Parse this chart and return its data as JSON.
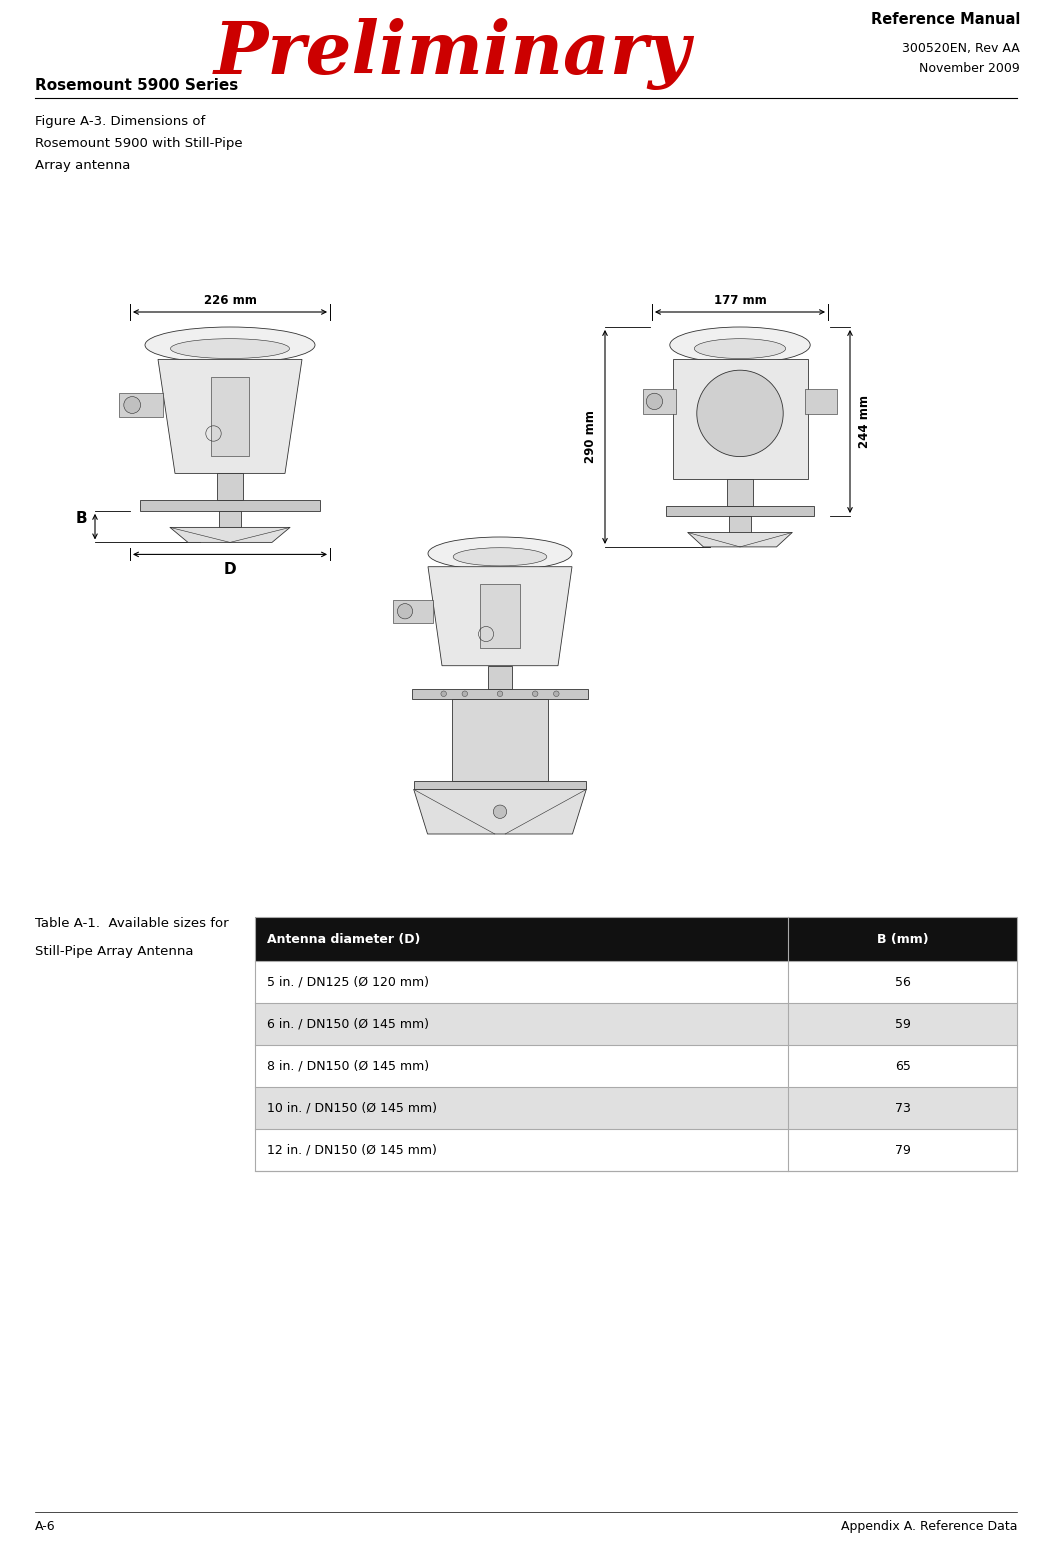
{
  "page_width": 10.52,
  "page_height": 15.67,
  "dpi": 100,
  "bg_color": "#ffffff",
  "header_preliminary_text": "Preliminary",
  "header_preliminary_color": "#cc0000",
  "header_ref_manual": "Reference Manual",
  "header_300520": "300520EN, Rev AA",
  "header_november": "November 2009",
  "header_series": "Rosemount 5900 Series",
  "figure_caption_line1": "Figure A-3. Dimensions of",
  "figure_caption_line2": "Rosemount 5900 with Still-Pipe",
  "figure_caption_line3": "Array antenna",
  "dim_226mm": "226 mm",
  "dim_177mm": "177 mm",
  "dim_290mm": "290 mm",
  "dim_244mm": "244 mm",
  "label_B": "B",
  "label_D": "D",
  "table_title_line1": "Table A-1.  Available sizes for",
  "table_title_line2": "Still-Pipe Array Antenna",
  "table_col1_header": "Antenna diameter (D)",
  "table_col2_header": "B (mm)",
  "table_rows": [
    [
      "5 in. / DN125 (Ø 120 mm)",
      "56"
    ],
    [
      "6 in. / DN150 (Ø 145 mm)",
      "59"
    ],
    [
      "8 in. / DN150 (Ø 145 mm)",
      "65"
    ],
    [
      "10 in. / DN150 (Ø 145 mm)",
      "73"
    ],
    [
      "12 in. / DN150 (Ø 145 mm)",
      "79"
    ]
  ],
  "table_header_bg": "#111111",
  "table_header_fg": "#ffffff",
  "table_alt_row_bg": "#e0e0e0",
  "table_row_bg": "#ffffff",
  "table_border_color": "#aaaaaa",
  "footer_left": "A-6",
  "footer_right": "Appendix A. Reference Data"
}
